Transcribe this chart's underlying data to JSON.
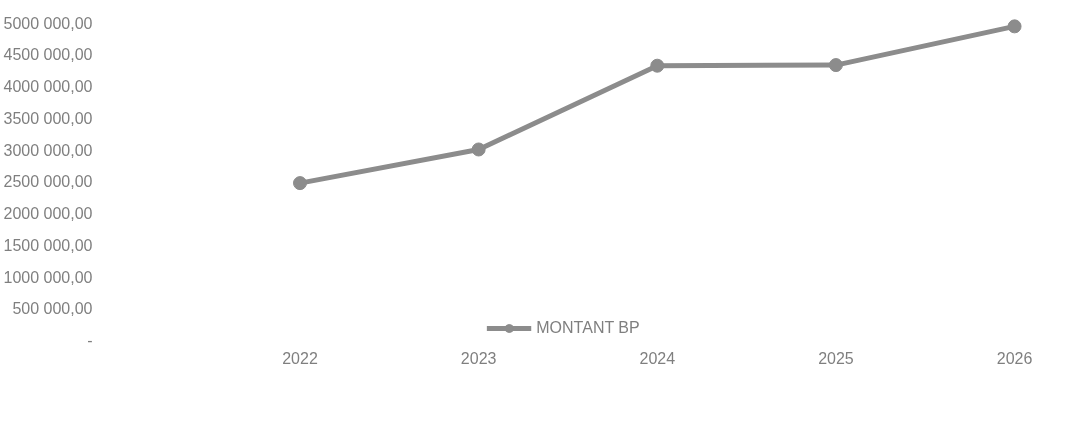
{
  "chart_data": {
    "type": "line",
    "categories": [
      "2022",
      "2023",
      "2024",
      "2025",
      "2026"
    ],
    "series": [
      {
        "name": "MONTANT BP",
        "color": "#8c8c8c",
        "values": [
          2480000,
          3010000,
          4330000,
          4340000,
          4950000
        ]
      }
    ],
    "ylim": [
      0,
      5000000
    ],
    "yticks": [
      {
        "value": 0,
        "label": "-"
      },
      {
        "value": 500000,
        "label": "500 000,00"
      },
      {
        "value": 1000000,
        "label": "1000 000,00"
      },
      {
        "value": 1500000,
        "label": "1500 000,00"
      },
      {
        "value": 2000000,
        "label": "2000 000,00"
      },
      {
        "value": 2500000,
        "label": "2500 000,00"
      },
      {
        "value": 3000000,
        "label": "3000 000,00"
      },
      {
        "value": 3500000,
        "label": "3500 000,00"
      },
      {
        "value": 4000000,
        "label": "4000 000,00"
      },
      {
        "value": 4500000,
        "label": "4500 000,00"
      },
      {
        "value": 5000000,
        "label": "5000 000,00"
      }
    ],
    "grid": false,
    "legend": "bottom",
    "marker": "circle",
    "line_style": "solid"
  }
}
